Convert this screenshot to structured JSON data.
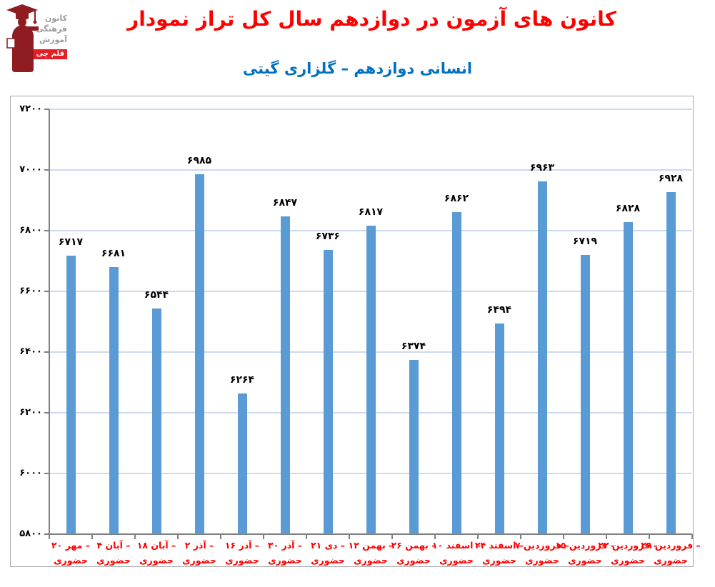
{
  "logo": {
    "line1": "کانون",
    "line2": "فرهنگی",
    "line3": "آموزش",
    "badge": "قلم چی"
  },
  "header": {
    "title": "نمودار تراز کل سال دوازدهم در آزمون های کانون",
    "subtitle": "گیتی گلزاری – دوازدهم انسانی",
    "title_color": "#FF0000",
    "subtitle_color": "#0070C0"
  },
  "chart_data": {
    "type": "bar",
    "title": "نمودار تراز کل سال دوازدهم در آزمون های کانون",
    "subtitle": "گیتی گلزاری – دوازدهم انسانی",
    "categories": [
      {
        "line1": "۲۰ مهر –",
        "line2": "حضوری"
      },
      {
        "line1": "۴ آبان –",
        "line2": "حضوری"
      },
      {
        "line1": "۱۸ آبان –",
        "line2": "حضوری"
      },
      {
        "line1": "۲ آذر –",
        "line2": "حضوری"
      },
      {
        "line1": "۱۶ آذر –",
        "line2": "حضوری"
      },
      {
        "line1": "۳۰ آذر –",
        "line2": "حضوری"
      },
      {
        "line1": "۲۱ دی –",
        "line2": "حضوری"
      },
      {
        "line1": "۱۲ بهمن –",
        "line2": "حضوری"
      },
      {
        "line1": "۲۶ بهمن –",
        "line2": "حضوری"
      },
      {
        "line1": "۱۰ اسفند –",
        "line2": "حضوری"
      },
      {
        "line1": "۲۴ اسفند –",
        "line2": "حضوری"
      },
      {
        "line1": "۷ فروردین –",
        "line2": "حضوری"
      },
      {
        "line1": "۱۵ فروردین –",
        "line2": "حضوری"
      },
      {
        "line1": "۲۲ فروردین –",
        "line2": "حضوری"
      },
      {
        "line1": "۲۹ فروردین –",
        "line2": "حضوری"
      }
    ],
    "values": [
      6717,
      6681,
      6544,
      6985,
      6264,
      6847,
      6736,
      6817,
      6374,
      6862,
      6494,
      6963,
      6719,
      6828,
      6928
    ],
    "values_display": [
      "۶۷۱۷",
      "۶۶۸۱",
      "۶۵۴۴",
      "۶۹۸۵",
      "۶۲۶۴",
      "۶۸۴۷",
      "۶۷۳۶",
      "۶۸۱۷",
      "۶۳۷۴",
      "۶۸۶۲",
      "۶۴۹۴",
      "۶۹۶۳",
      "۶۷۱۹",
      "۶۸۲۸",
      "۶۹۲۸"
    ],
    "ylim": [
      5800,
      7200
    ],
    "ytick_step": 200,
    "yticks": [
      7200,
      7000,
      6800,
      6600,
      6400,
      6200,
      6000,
      5800
    ],
    "yticks_display": [
      "۷۲۰۰",
      "۷۰۰۰",
      "۶۸۰۰",
      "۶۶۰۰",
      "۶۴۰۰",
      "۶۲۰۰",
      "۶۰۰۰",
      "۵۸۰۰"
    ],
    "xlabel": "",
    "ylabel": "",
    "grid": true,
    "legend": false,
    "bar_color": "#5B9BD5",
    "gridline_color": "#CBDAF1",
    "axis_color": "#7F7F7F",
    "value_label_color": "#000000",
    "category_label_color": "#FF0000"
  }
}
